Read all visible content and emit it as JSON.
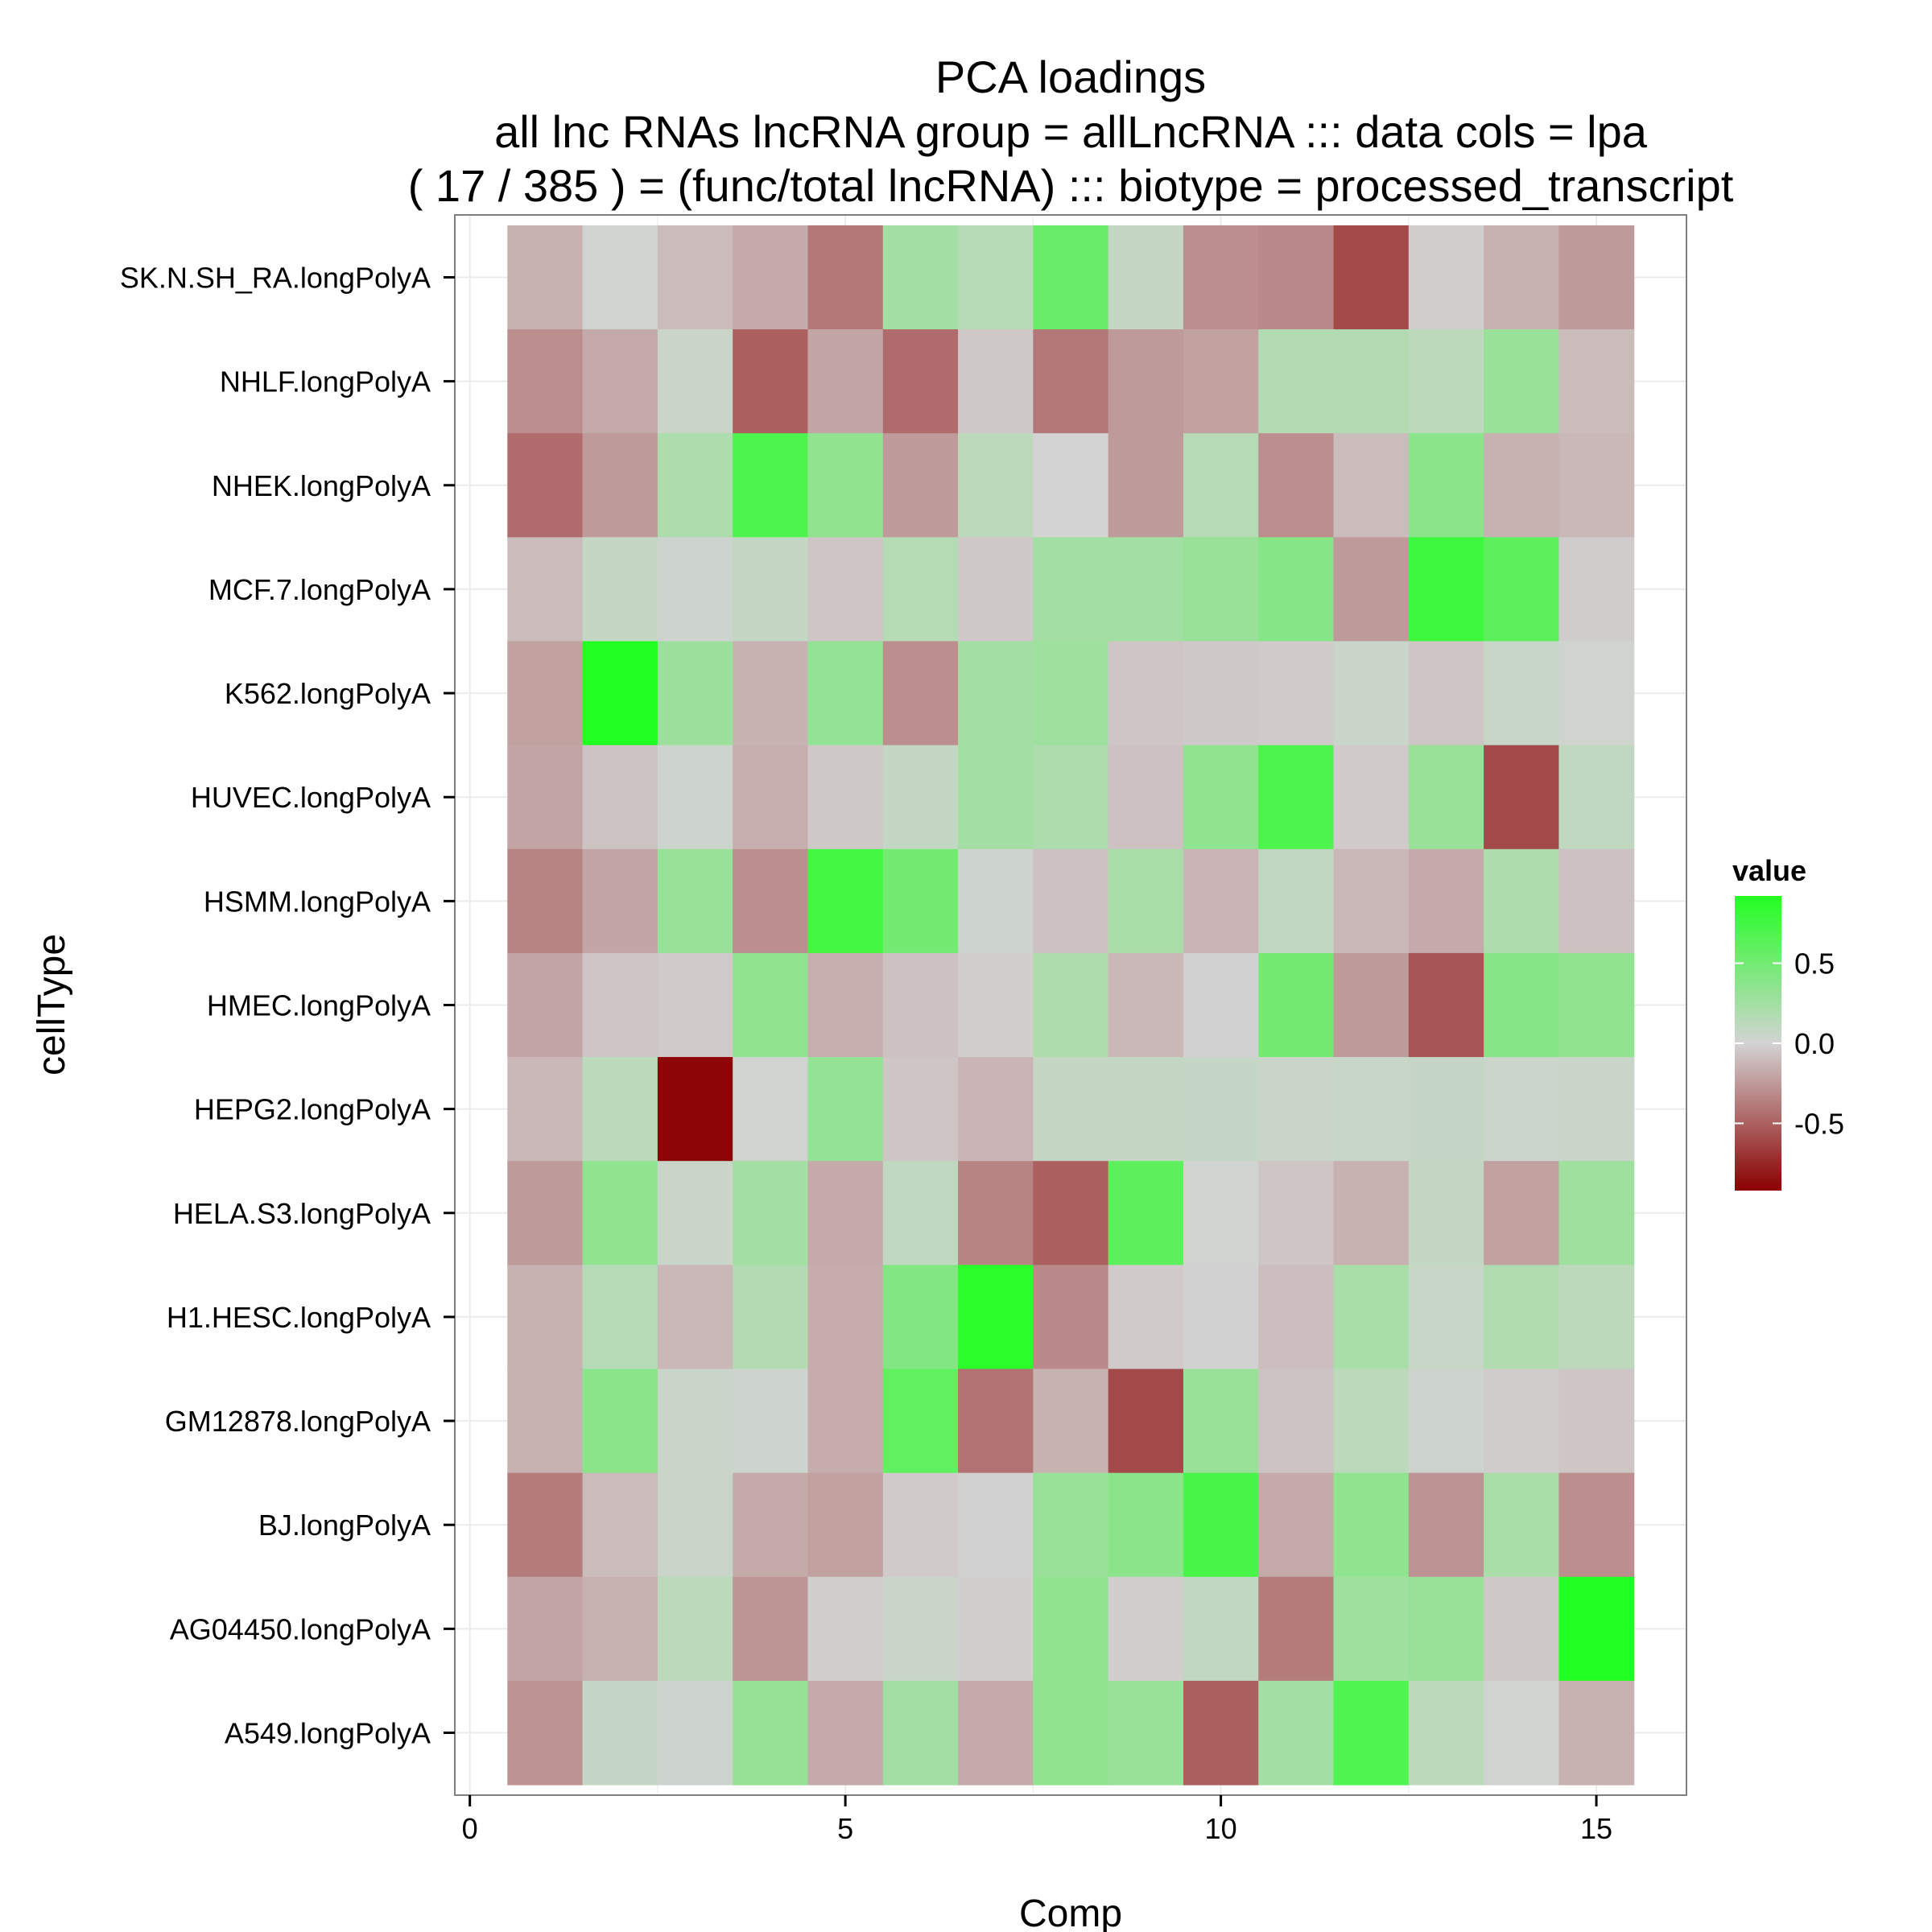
{
  "chart_data": {
    "type": "heatmap",
    "title": "PCA loadings",
    "subtitle_lines": [
      "all lnc RNAs lncRNA group = allLncRNA ::: data cols = lpa",
      "( 17 / 385 ) = (func/total lncRNA) ::: biotype = processed_transcript"
    ],
    "xlabel": "Comp",
    "ylabel": "cellType",
    "x_range": [
      -0.2,
      16.2
    ],
    "x_ticks": [
      0,
      5,
      10,
      15
    ],
    "x_tick_labels": [
      "0",
      "5",
      "10",
      "15"
    ],
    "x": [
      1,
      2,
      3,
      4,
      5,
      6,
      7,
      8,
      9,
      10,
      11,
      12,
      13,
      14,
      15
    ],
    "rows": [
      "SK.N.SH_RA.longPolyA",
      "NHLF.longPolyA",
      "NHEK.longPolyA",
      "MCF.7.longPolyA",
      "K562.longPolyA",
      "HUVEC.longPolyA",
      "HSMM.longPolyA",
      "HMEC.longPolyA",
      "HEPG2.longPolyA",
      "HELA.S3.longPolyA",
      "H1.HESC.longPolyA",
      "GM12878.longPolyA",
      "BJ.longPolyA",
      "AG04450.longPolyA",
      "A549.longPolyA"
    ],
    "values": [
      [
        -0.15,
        0.02,
        -0.1,
        -0.18,
        -0.4,
        0.25,
        0.15,
        0.55,
        0.08,
        -0.3,
        -0.32,
        -0.6,
        -0.02,
        -0.15,
        -0.25
      ],
      [
        -0.3,
        -0.18,
        0.05,
        -0.5,
        -0.2,
        -0.45,
        -0.05,
        -0.4,
        -0.25,
        -0.22,
        0.17,
        0.17,
        0.12,
        0.3,
        -0.1
      ],
      [
        -0.45,
        -0.25,
        0.2,
        0.7,
        0.35,
        -0.25,
        0.12,
        0.0,
        -0.25,
        0.15,
        -0.3,
        -0.1,
        0.38,
        -0.15,
        -0.12
      ],
      [
        -0.1,
        0.08,
        0.03,
        0.08,
        -0.06,
        0.16,
        -0.05,
        0.25,
        0.25,
        0.3,
        0.4,
        -0.25,
        0.78,
        0.62,
        -0.03
      ],
      [
        -0.22,
        0.92,
        0.28,
        -0.14,
        0.33,
        -0.3,
        0.25,
        0.27,
        -0.06,
        -0.05,
        -0.04,
        0.05,
        -0.06,
        0.06,
        0.02
      ],
      [
        -0.2,
        -0.07,
        0.03,
        -0.16,
        -0.05,
        0.08,
        0.25,
        0.2,
        -0.08,
        0.35,
        0.7,
        -0.04,
        0.3,
        -0.6,
        0.1
      ],
      [
        -0.35,
        -0.2,
        0.3,
        -0.3,
        0.75,
        0.5,
        0.03,
        -0.08,
        0.22,
        -0.13,
        0.09,
        -0.12,
        -0.18,
        0.2,
        -0.08
      ],
      [
        -0.2,
        -0.06,
        -0.04,
        0.35,
        -0.16,
        -0.08,
        -0.02,
        0.2,
        -0.12,
        -0.01,
        0.5,
        -0.25,
        -0.55,
        0.4,
        0.35
      ],
      [
        -0.12,
        0.12,
        -0.9,
        0.01,
        0.33,
        -0.06,
        -0.13,
        0.08,
        0.08,
        0.07,
        0.05,
        0.06,
        0.07,
        0.04,
        0.05
      ],
      [
        -0.25,
        0.35,
        0.05,
        0.25,
        -0.18,
        0.1,
        -0.35,
        -0.5,
        0.62,
        0.01,
        -0.06,
        -0.15,
        0.08,
        -0.22,
        0.27
      ],
      [
        -0.15,
        0.15,
        -0.12,
        0.17,
        -0.17,
        0.42,
        0.88,
        -0.32,
        -0.04,
        -0.01,
        -0.09,
        0.22,
        0.06,
        0.18,
        0.12
      ],
      [
        -0.15,
        0.38,
        0.05,
        0.03,
        -0.17,
        0.6,
        -0.42,
        -0.14,
        -0.6,
        0.3,
        -0.07,
        0.12,
        0.03,
        -0.03,
        -0.06
      ],
      [
        -0.38,
        -0.1,
        0.05,
        -0.18,
        -0.22,
        -0.04,
        -0.01,
        0.3,
        0.38,
        0.72,
        -0.18,
        0.35,
        -0.28,
        0.22,
        -0.3
      ],
      [
        -0.2,
        -0.15,
        0.12,
        -0.27,
        -0.02,
        0.05,
        -0.02,
        0.35,
        -0.02,
        0.09,
        -0.38,
        0.27,
        0.3,
        -0.05,
        0.92
      ],
      [
        -0.28,
        0.07,
        0.03,
        0.32,
        -0.18,
        0.25,
        -0.18,
        0.35,
        0.3,
        -0.5,
        0.25,
        0.68,
        0.12,
        0.02,
        -0.15
      ]
    ],
    "legend": {
      "title": "value",
      "placement": "right",
      "scale_min": -0.92,
      "scale_max": 0.92,
      "breaks": [
        0.5,
        0.0,
        -0.5
      ],
      "break_labels": [
        "0.5",
        "0.0",
        "-0.5"
      ],
      "low_color": "#8B0000",
      "mid_color": "#D3D3D3",
      "high_color": "#22FF22"
    },
    "grid": true,
    "panel_border_color": "#7F7F7F",
    "grid_color": "#EBEBEB"
  }
}
